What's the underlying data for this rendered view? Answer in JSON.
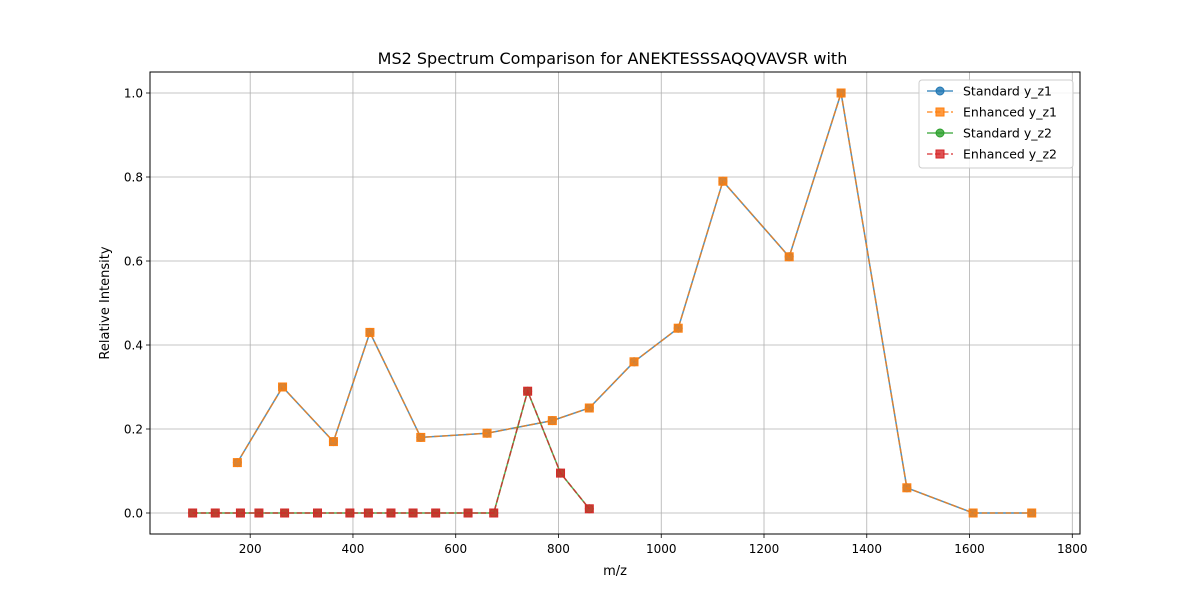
{
  "chart_data": {
    "type": "line",
    "title": "MS2 Spectrum Comparison for ANEKTESSSAQQVAVSR with",
    "xlabel": "m/z",
    "ylabel": "Relative Intensity",
    "xlim": [
      5,
      1815
    ],
    "ylim": [
      -0.05,
      1.05
    ],
    "xticks": [
      200,
      400,
      600,
      800,
      1000,
      1200,
      1400,
      1600,
      1800
    ],
    "yticks": [
      0.0,
      0.2,
      0.4,
      0.6,
      0.8,
      1.0
    ],
    "xtick_labels": [
      "200",
      "400",
      "600",
      "800",
      "1000",
      "1200",
      "1400",
      "1600",
      "1800"
    ],
    "ytick_labels": [
      "0.0",
      "0.2",
      "0.4",
      "0.6",
      "0.8",
      "1.0"
    ],
    "grid": true,
    "legend_position": "top-right",
    "series": [
      {
        "name": "Standard y_z1",
        "color": "#1f77b4",
        "marker": "circle",
        "linestyle": "solid",
        "x": [
          175,
          263,
          362,
          433,
          532,
          661,
          788,
          860,
          947,
          1033,
          1120,
          1249,
          1350,
          1478,
          1607,
          1721
        ],
        "y": [
          0.12,
          0.3,
          0.17,
          0.43,
          0.18,
          0.19,
          0.22,
          0.25,
          0.36,
          0.44,
          0.79,
          0.61,
          1.0,
          0.06,
          0.0,
          0.0
        ]
      },
      {
        "name": "Enhanced y_z1",
        "color": "#ff7f0e",
        "marker": "square",
        "linestyle": "dashed",
        "x": [
          175,
          263,
          362,
          433,
          532,
          661,
          788,
          860,
          947,
          1033,
          1120,
          1249,
          1350,
          1478,
          1607,
          1721
        ],
        "y": [
          0.12,
          0.3,
          0.17,
          0.43,
          0.18,
          0.19,
          0.22,
          0.25,
          0.36,
          0.44,
          0.79,
          0.61,
          1.0,
          0.06,
          0.0,
          0.0
        ]
      },
      {
        "name": "Standard y_z2",
        "color": "#2ca02c",
        "marker": "circle",
        "linestyle": "solid",
        "x": [
          88,
          132,
          181,
          217,
          267,
          331,
          394,
          430,
          474,
          517,
          561,
          624,
          674,
          740,
          804,
          860
        ],
        "y": [
          0.0,
          0.0,
          0.0,
          0.0,
          0.0,
          0.0,
          0.0,
          0.0,
          0.0,
          0.0,
          0.0,
          0.0,
          0.0,
          0.29,
          0.095,
          0.01
        ]
      },
      {
        "name": "Enhanced y_z2",
        "color": "#d62728",
        "marker": "square",
        "linestyle": "dashed",
        "x": [
          88,
          132,
          181,
          217,
          267,
          331,
          394,
          430,
          474,
          517,
          561,
          624,
          674,
          740,
          804,
          860
        ],
        "y": [
          0.0,
          0.0,
          0.0,
          0.0,
          0.0,
          0.0,
          0.0,
          0.0,
          0.0,
          0.0,
          0.0,
          0.0,
          0.0,
          0.29,
          0.095,
          0.01
        ]
      }
    ]
  }
}
